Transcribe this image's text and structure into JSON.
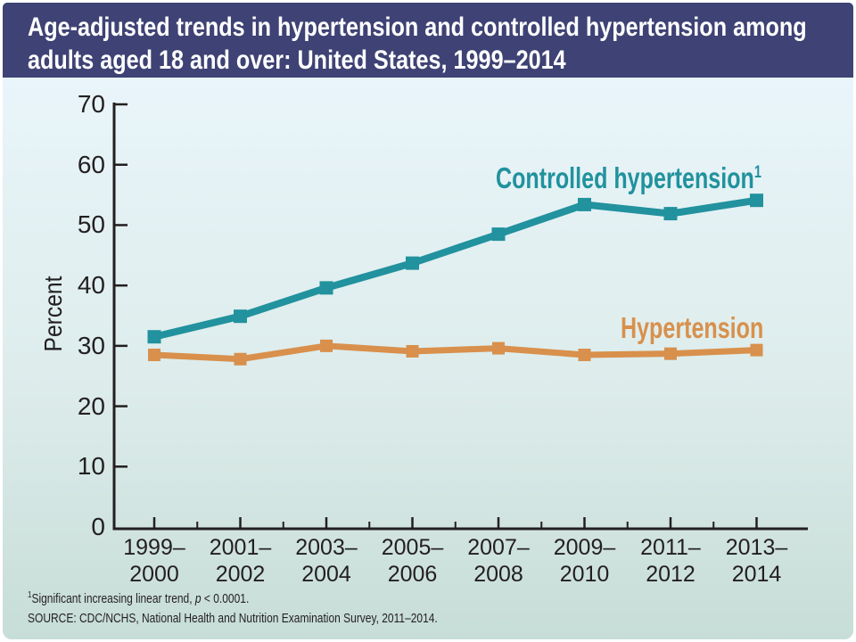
{
  "header": {
    "title_line1": "Age-adjusted trends in hypertension and controlled hypertension among",
    "title_line2": "adults aged 18 and over: United States, 1999–2014",
    "bg_color": "#3e4274",
    "text_color": "#ffffff"
  },
  "chart_data": {
    "type": "line",
    "title": "Age-adjusted trends in hypertension and controlled hypertension among adults aged 18 and over: United States, 1999–2014",
    "categories": [
      "1999–2000",
      "2001–2002",
      "2003–2004",
      "2005–2006",
      "2007–2008",
      "2009–2010",
      "2011–2012",
      "2013–2014"
    ],
    "series": [
      {
        "name": "Controlled hypertension",
        "sup": "1",
        "color": "#21929e",
        "values": [
          31.5,
          34.9,
          39.6,
          43.7,
          48.5,
          53.4,
          51.9,
          54.1
        ]
      },
      {
        "name": "Hypertension",
        "sup": "",
        "color": "#d8904c",
        "values": [
          28.5,
          27.8,
          30.0,
          29.1,
          29.6,
          28.5,
          28.7,
          29.3
        ]
      }
    ],
    "xlabel": "",
    "ylabel": "Percent",
    "ylim": [
      0,
      70
    ],
    "yticks": [
      0,
      10,
      20,
      30,
      40,
      50,
      60,
      70
    ],
    "grid": false,
    "marker": "square",
    "legend_position": "inline-labels"
  },
  "footnotes": {
    "note1_sup": "1",
    "note1_pre": "Significant increasing linear trend, ",
    "note1_italic": "p",
    "note1_post": " < 0.0001.",
    "source": "SOURCE: CDC/NCHS, National Health and Nutrition Examination Survey, 2011–2014."
  },
  "colors": {
    "frame": "#ffffff",
    "background_top": "#e9f5fa",
    "background_bottom": "#c7ddd7",
    "axis": "#231f20"
  }
}
